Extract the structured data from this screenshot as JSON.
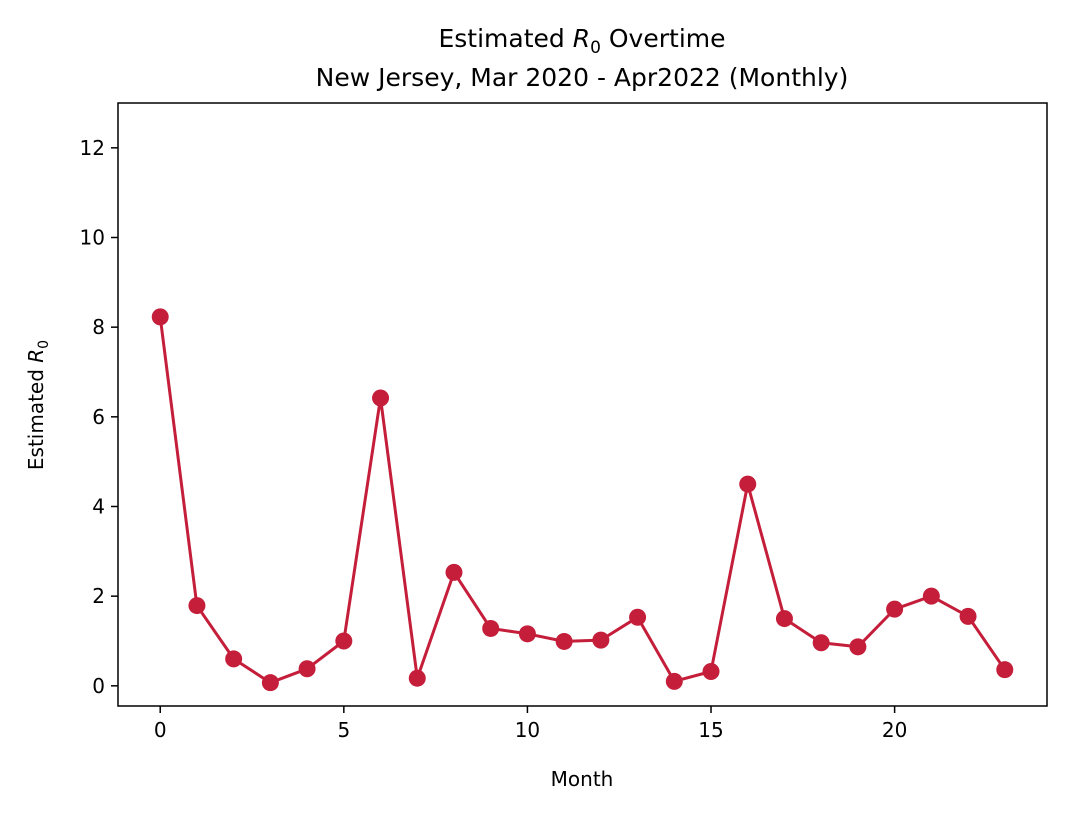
{
  "chart_data": {
    "type": "line",
    "title_line1_prefix": "Estimated ",
    "title_symbol": "R",
    "title_subscript": "0",
    "title_line1_suffix": " Overtime",
    "title_line2": "New Jersey, Mar 2020 - Apr2022 (Monthly)",
    "xlabel": "Month",
    "ylabel_prefix": "Estimated ",
    "ylabel_symbol": "R",
    "ylabel_subscript": "0",
    "xlim": [
      -1.15,
      24.15
    ],
    "ylim": [
      -0.45,
      13.0
    ],
    "xticks": [
      0,
      5,
      10,
      15,
      20
    ],
    "yticks": [
      0,
      2,
      4,
      6,
      8,
      10,
      12
    ],
    "grid": false,
    "color": "#C41E3A",
    "series": [
      {
        "x": [
          0,
          1,
          2,
          3,
          4,
          5,
          6,
          7,
          8,
          9,
          10,
          11,
          12,
          13,
          14,
          15,
          16,
          17,
          18,
          19,
          20,
          21,
          22,
          23
        ],
        "values": [
          8.23,
          1.79,
          0.6,
          0.07,
          0.38,
          1.0,
          6.42,
          0.17,
          2.53,
          1.28,
          1.16,
          0.99,
          1.02,
          1.53,
          0.1,
          0.32,
          4.5,
          1.5,
          0.96,
          0.87,
          1.71,
          2.0,
          1.55,
          0.36
        ]
      }
    ]
  }
}
